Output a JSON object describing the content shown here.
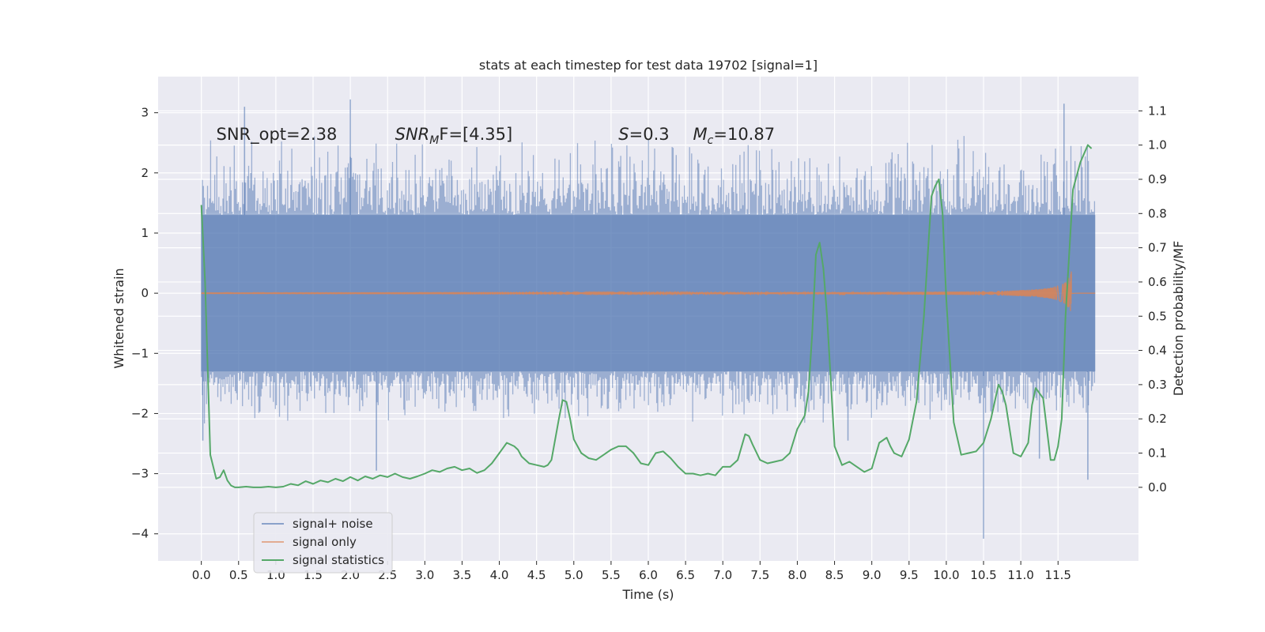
{
  "chart_data": {
    "type": "line",
    "title": "stats at each timestep for test data 19702 [signal=1]",
    "xlabel": "Time (s)",
    "ylabel": "Whitened strain",
    "ylabel_right": "Detection probability/MF",
    "xlim": [
      -0.58,
      12.58
    ],
    "ylim": [
      -4.45,
      3.6
    ],
    "ylim_right": [
      -0.215,
      1.2
    ],
    "x_ticks": [
      0.0,
      0.5,
      1.0,
      1.5,
      2.0,
      2.5,
      3.0,
      3.5,
      4.0,
      4.5,
      5.0,
      5.5,
      6.0,
      6.5,
      7.0,
      7.5,
      8.0,
      8.5,
      9.0,
      9.5,
      10.0,
      10.5,
      11.0,
      11.5
    ],
    "x_tick_labels": [
      "0.0",
      "0.5",
      "1.0",
      "1.5",
      "2.0",
      "2.5",
      "3.0",
      "3.5",
      "4.0",
      "4.5",
      "5.0",
      "5.5",
      "6.0",
      "6.5",
      "7.0",
      "7.5",
      "8.0",
      "8.5",
      "9.0",
      "9.5",
      "10.0",
      "10.5",
      "11.0",
      "11.5"
    ],
    "y_ticks": [
      -4,
      -3,
      -2,
      -1,
      0,
      1,
      2,
      3
    ],
    "y_tick_labels": [
      "−4",
      "−3",
      "−2",
      "−1",
      "0",
      "1",
      "2",
      "3"
    ],
    "y2_ticks": [
      0.0,
      0.1,
      0.2,
      0.3,
      0.4,
      0.5,
      0.6,
      0.7,
      0.8,
      0.9,
      1.0,
      1.1
    ],
    "y2_tick_labels": [
      "0.0",
      "0.1",
      "0.2",
      "0.3",
      "0.4",
      "0.5",
      "0.6",
      "0.7",
      "0.8",
      "0.9",
      "1.0",
      "1.1"
    ],
    "grid": true,
    "legend_position": "lower-left",
    "annotations": [
      {
        "text": "SNR_opt=2.38",
        "x": 0.2,
        "y": 2.55
      },
      {
        "base": "SNR",
        "sub": "M",
        "rest": "F=[4.35]",
        "x": 2.6,
        "y": 2.55
      },
      {
        "base": "S",
        "sub": "",
        "rest": "=0.3",
        "x": 5.6,
        "y": 2.55
      },
      {
        "base": "M",
        "sub": "c",
        "rest": "=10.87",
        "x": 6.6,
        "y": 2.55
      }
    ],
    "series": [
      {
        "name": "signal+ noise",
        "color": "#4c72b0",
        "axis": "left",
        "kind": "noise",
        "x_range": [
          0.0,
          12.0
        ],
        "core_band": [
          -1.3,
          1.3
        ],
        "typical_peak": [
          -2.2,
          2.7
        ],
        "spikes": [
          {
            "x": 0.58,
            "y": 3.1
          },
          {
            "x": 2.0,
            "y": 3.22
          },
          {
            "x": 11.58,
            "y": 3.15
          },
          {
            "x": 10.5,
            "y": -4.08
          },
          {
            "x": 11.9,
            "y": -3.1
          },
          {
            "x": 2.35,
            "y": -2.95
          },
          {
            "x": 0.02,
            "y": -2.45
          },
          {
            "x": 8.68,
            "y": -2.45
          },
          {
            "x": 11.25,
            "y": -2.75
          }
        ]
      },
      {
        "name": "signal only",
        "color": "#dd8452",
        "axis": "left",
        "kind": "chirp",
        "x_range": [
          0.0,
          12.0
        ],
        "merger_time": 11.68,
        "max_amplitude": 0.38
      },
      {
        "name": "signal statistics",
        "color": "#55a868",
        "axis": "right",
        "x": [
          0.0,
          0.05,
          0.12,
          0.2,
          0.25,
          0.3,
          0.35,
          0.4,
          0.45,
          0.5,
          0.6,
          0.7,
          0.8,
          0.9,
          1.0,
          1.1,
          1.2,
          1.3,
          1.4,
          1.5,
          1.6,
          1.7,
          1.8,
          1.9,
          2.0,
          2.1,
          2.2,
          2.3,
          2.4,
          2.5,
          2.6,
          2.7,
          2.8,
          2.9,
          3.0,
          3.1,
          3.2,
          3.3,
          3.4,
          3.5,
          3.6,
          3.7,
          3.8,
          3.9,
          4.0,
          4.1,
          4.2,
          4.25,
          4.3,
          4.4,
          4.5,
          4.6,
          4.65,
          4.7,
          4.8,
          4.85,
          4.9,
          4.95,
          5.0,
          5.1,
          5.2,
          5.3,
          5.4,
          5.5,
          5.6,
          5.7,
          5.8,
          5.9,
          6.0,
          6.1,
          6.2,
          6.3,
          6.4,
          6.5,
          6.6,
          6.7,
          6.8,
          6.9,
          7.0,
          7.1,
          7.2,
          7.3,
          7.35,
          7.4,
          7.5,
          7.6,
          7.7,
          7.8,
          7.9,
          8.0,
          8.1,
          8.15,
          8.2,
          8.25,
          8.3,
          8.35,
          8.4,
          8.5,
          8.6,
          8.7,
          8.8,
          8.9,
          9.0,
          9.1,
          9.2,
          9.25,
          9.3,
          9.4,
          9.5,
          9.6,
          9.7,
          9.8,
          9.85,
          9.9,
          9.95,
          10.0,
          10.1,
          10.2,
          10.3,
          10.4,
          10.5,
          10.6,
          10.7,
          10.75,
          10.8,
          10.9,
          11.0,
          11.1,
          11.15,
          11.2,
          11.3,
          11.4,
          11.45,
          11.5,
          11.55,
          11.6,
          11.7,
          11.8,
          11.9,
          11.95
        ],
        "y": [
          0.825,
          0.6,
          0.095,
          0.025,
          0.03,
          0.05,
          0.02,
          0.005,
          0.0,
          0.0,
          0.002,
          0.0,
          0.0,
          0.002,
          0.0,
          0.002,
          0.01,
          0.006,
          0.018,
          0.01,
          0.02,
          0.015,
          0.025,
          0.018,
          0.03,
          0.02,
          0.032,
          0.025,
          0.035,
          0.03,
          0.04,
          0.03,
          0.025,
          0.032,
          0.04,
          0.05,
          0.045,
          0.055,
          0.06,
          0.05,
          0.055,
          0.042,
          0.05,
          0.07,
          0.1,
          0.13,
          0.12,
          0.11,
          0.09,
          0.07,
          0.065,
          0.06,
          0.065,
          0.08,
          0.2,
          0.255,
          0.25,
          0.2,
          0.14,
          0.1,
          0.085,
          0.08,
          0.095,
          0.11,
          0.12,
          0.12,
          0.1,
          0.07,
          0.065,
          0.1,
          0.105,
          0.085,
          0.06,
          0.04,
          0.04,
          0.035,
          0.04,
          0.035,
          0.06,
          0.06,
          0.08,
          0.155,
          0.15,
          0.125,
          0.08,
          0.07,
          0.075,
          0.08,
          0.1,
          0.17,
          0.21,
          0.28,
          0.45,
          0.68,
          0.715,
          0.64,
          0.5,
          0.12,
          0.065,
          0.075,
          0.06,
          0.045,
          0.055,
          0.13,
          0.145,
          0.12,
          0.1,
          0.09,
          0.14,
          0.25,
          0.5,
          0.85,
          0.88,
          0.9,
          0.8,
          0.55,
          0.19,
          0.095,
          0.1,
          0.105,
          0.13,
          0.2,
          0.3,
          0.28,
          0.24,
          0.1,
          0.09,
          0.13,
          0.24,
          0.29,
          0.26,
          0.08,
          0.08,
          0.12,
          0.2,
          0.5,
          0.87,
          0.95,
          1.0,
          0.99
        ]
      }
    ]
  }
}
